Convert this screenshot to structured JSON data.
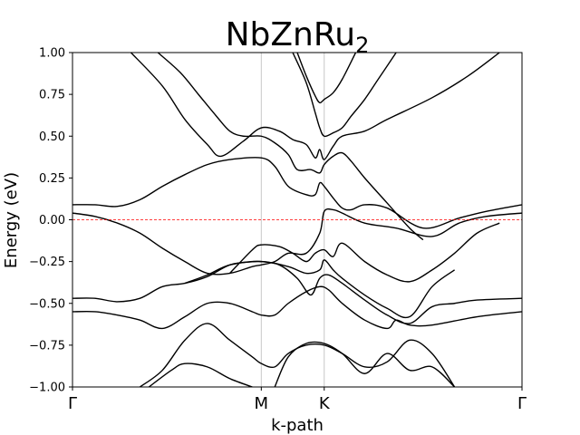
{
  "chart_data": {
    "type": "line",
    "title": "NbZnRu",
    "title_subscript": "2",
    "xlabel": "k-path",
    "ylabel": "Energy (eV)",
    "ylim": [
      -1.0,
      1.0
    ],
    "xlim": [
      0,
      1
    ],
    "yticks": [
      {
        "value": 1.0,
        "label": "1.00"
      },
      {
        "value": 0.75,
        "label": "0.75"
      },
      {
        "value": 0.5,
        "label": "0.50"
      },
      {
        "value": 0.25,
        "label": "0.25"
      },
      {
        "value": 0.0,
        "label": "0.00"
      },
      {
        "value": -0.25,
        "label": "−0.25"
      },
      {
        "value": -0.5,
        "label": "−0.50"
      },
      {
        "value": -0.75,
        "label": "−0.75"
      },
      {
        "value": -1.0,
        "label": "−1.00"
      }
    ],
    "kpoints": [
      {
        "label": "Γ",
        "x": 0.0
      },
      {
        "label": "M",
        "x": 0.42
      },
      {
        "label": "K",
        "x": 0.56
      },
      {
        "label": "Γ",
        "x": 1.0
      }
    ],
    "fermi_level": 0.0,
    "colors": {
      "bands": "#000000",
      "fermi": "#ff0000",
      "kline": "#c8c8c8"
    },
    "bands": [
      {
        "points": [
          [
            0.13,
            1.0
          ],
          [
            0.2,
            0.8
          ],
          [
            0.25,
            0.6
          ],
          [
            0.3,
            0.45
          ],
          [
            0.33,
            0.38
          ],
          [
            0.38,
            0.47
          ],
          [
            0.42,
            0.55
          ],
          [
            0.46,
            0.53
          ],
          [
            0.49,
            0.48
          ],
          [
            0.52,
            0.45
          ],
          [
            0.54,
            0.37
          ],
          [
            0.55,
            0.42
          ],
          [
            0.56,
            0.36
          ],
          [
            0.58,
            0.44
          ],
          [
            0.6,
            0.5
          ],
          [
            0.65,
            0.53
          ],
          [
            0.7,
            0.6
          ],
          [
            0.8,
            0.73
          ],
          [
            0.88,
            0.86
          ],
          [
            0.95,
            1.0
          ]
        ]
      },
      {
        "points": [
          [
            0.19,
            1.0
          ],
          [
            0.24,
            0.88
          ],
          [
            0.28,
            0.75
          ],
          [
            0.32,
            0.62
          ],
          [
            0.35,
            0.53
          ],
          [
            0.38,
            0.5
          ],
          [
            0.42,
            0.5
          ],
          [
            0.45,
            0.46
          ],
          [
            0.48,
            0.39
          ],
          [
            0.5,
            0.3
          ],
          [
            0.53,
            0.3
          ],
          [
            0.55,
            0.28
          ],
          [
            0.56,
            0.33
          ],
          [
            0.58,
            0.38
          ],
          [
            0.6,
            0.4
          ],
          [
            0.62,
            0.35
          ],
          [
            0.65,
            0.25
          ],
          [
            0.7,
            0.1
          ],
          [
            0.75,
            -0.05
          ],
          [
            0.78,
            -0.12
          ]
        ]
      },
      {
        "points": [
          [
            0.49,
            1.0
          ],
          [
            0.52,
            0.82
          ],
          [
            0.54,
            0.64
          ],
          [
            0.55,
            0.55
          ],
          [
            0.56,
            0.5
          ],
          [
            0.58,
            0.52
          ],
          [
            0.6,
            0.55
          ],
          [
            0.62,
            0.62
          ],
          [
            0.65,
            0.72
          ],
          [
            0.68,
            0.84
          ],
          [
            0.72,
            1.0
          ]
        ]
      },
      {
        "points": [
          [
            0.5,
            1.0
          ],
          [
            0.52,
            0.86
          ],
          [
            0.54,
            0.74
          ],
          [
            0.55,
            0.7
          ],
          [
            0.56,
            0.72
          ],
          [
            0.58,
            0.76
          ],
          [
            0.6,
            0.84
          ],
          [
            0.63,
            1.0
          ]
        ]
      },
      {
        "points": [
          [
            0.0,
            0.09
          ],
          [
            0.05,
            0.09
          ],
          [
            0.1,
            0.08
          ],
          [
            0.15,
            0.12
          ],
          [
            0.2,
            0.2
          ],
          [
            0.25,
            0.27
          ],
          [
            0.3,
            0.33
          ],
          [
            0.35,
            0.36
          ],
          [
            0.42,
            0.37
          ],
          [
            0.45,
            0.32
          ],
          [
            0.48,
            0.2
          ],
          [
            0.52,
            0.15
          ],
          [
            0.54,
            0.15
          ],
          [
            0.55,
            0.22
          ],
          [
            0.56,
            0.2
          ],
          [
            0.58,
            0.13
          ],
          [
            0.6,
            0.07
          ],
          [
            0.62,
            0.06
          ],
          [
            0.65,
            0.09
          ],
          [
            0.7,
            0.07
          ],
          [
            0.78,
            -0.05
          ],
          [
            0.86,
            0.01
          ],
          [
            0.92,
            0.05
          ],
          [
            1.0,
            0.09
          ]
        ]
      },
      {
        "points": [
          [
            0.0,
            0.04
          ],
          [
            0.05,
            0.02
          ],
          [
            0.1,
            -0.02
          ],
          [
            0.15,
            -0.08
          ],
          [
            0.2,
            -0.17
          ],
          [
            0.25,
            -0.25
          ],
          [
            0.3,
            -0.32
          ],
          [
            0.35,
            -0.32
          ],
          [
            0.4,
            -0.28
          ],
          [
            0.42,
            -0.27
          ],
          [
            0.45,
            -0.25
          ],
          [
            0.48,
            -0.2
          ],
          [
            0.52,
            -0.2
          ],
          [
            0.55,
            -0.08
          ],
          [
            0.56,
            0.05
          ],
          [
            0.58,
            0.06
          ],
          [
            0.6,
            0.04
          ],
          [
            0.65,
            -0.02
          ],
          [
            0.72,
            -0.05
          ],
          [
            0.8,
            -0.1
          ],
          [
            0.86,
            -0.02
          ],
          [
            0.92,
            0.02
          ],
          [
            1.0,
            0.04
          ]
        ]
      },
      {
        "points": [
          [
            0.35,
            -0.32
          ],
          [
            0.4,
            -0.18
          ],
          [
            0.42,
            -0.15
          ],
          [
            0.46,
            -0.16
          ],
          [
            0.49,
            -0.2
          ],
          [
            0.52,
            -0.25
          ],
          [
            0.54,
            -0.2
          ],
          [
            0.56,
            -0.18
          ],
          [
            0.58,
            -0.22
          ],
          [
            0.6,
            -0.14
          ],
          [
            0.65,
            -0.25
          ],
          [
            0.7,
            -0.33
          ],
          [
            0.75,
            -0.37
          ],
          [
            0.8,
            -0.3
          ],
          [
            0.85,
            -0.2
          ],
          [
            0.9,
            -0.08
          ],
          [
            0.95,
            -0.02
          ]
        ]
      },
      {
        "points": [
          [
            0.25,
            -0.38
          ],
          [
            0.3,
            -0.33
          ],
          [
            0.35,
            -0.27
          ],
          [
            0.42,
            -0.25
          ],
          [
            0.48,
            -0.28
          ],
          [
            0.52,
            -0.32
          ],
          [
            0.55,
            -0.3
          ],
          [
            0.56,
            -0.24
          ],
          [
            0.58,
            -0.3
          ],
          [
            0.6,
            -0.35
          ],
          [
            0.65,
            -0.45
          ],
          [
            0.7,
            -0.53
          ],
          [
            0.75,
            -0.58
          ],
          [
            0.8,
            -0.4
          ],
          [
            0.85,
            -0.3
          ]
        ]
      },
      {
        "points": [
          [
            0.0,
            -0.47
          ],
          [
            0.05,
            -0.47
          ],
          [
            0.1,
            -0.49
          ],
          [
            0.15,
            -0.47
          ],
          [
            0.2,
            -0.4
          ],
          [
            0.25,
            -0.38
          ],
          [
            0.3,
            -0.34
          ],
          [
            0.35,
            -0.27
          ],
          [
            0.4,
            -0.25
          ],
          [
            0.42,
            -0.25
          ],
          [
            0.46,
            -0.27
          ],
          [
            0.5,
            -0.35
          ],
          [
            0.53,
            -0.45
          ],
          [
            0.55,
            -0.35
          ],
          [
            0.57,
            -0.33
          ],
          [
            0.6,
            -0.38
          ],
          [
            0.65,
            -0.48
          ],
          [
            0.7,
            -0.57
          ],
          [
            0.75,
            -0.62
          ],
          [
            0.8,
            -0.52
          ],
          [
            0.85,
            -0.5
          ],
          [
            0.9,
            -0.48
          ],
          [
            1.0,
            -0.47
          ]
        ]
      },
      {
        "points": [
          [
            0.0,
            -0.55
          ],
          [
            0.05,
            -0.55
          ],
          [
            0.1,
            -0.57
          ],
          [
            0.15,
            -0.6
          ],
          [
            0.2,
            -0.65
          ],
          [
            0.25,
            -0.58
          ],
          [
            0.3,
            -0.5
          ],
          [
            0.35,
            -0.5
          ],
          [
            0.4,
            -0.55
          ],
          [
            0.42,
            -0.57
          ],
          [
            0.45,
            -0.57
          ],
          [
            0.48,
            -0.5
          ],
          [
            0.52,
            -0.43
          ],
          [
            0.55,
            -0.4
          ],
          [
            0.57,
            -0.42
          ],
          [
            0.6,
            -0.5
          ],
          [
            0.65,
            -0.6
          ],
          [
            0.7,
            -0.65
          ],
          [
            0.72,
            -0.6
          ],
          [
            0.75,
            -0.63
          ],
          [
            0.8,
            -0.63
          ],
          [
            0.9,
            -0.58
          ],
          [
            1.0,
            -0.55
          ]
        ]
      },
      {
        "points": [
          [
            0.15,
            -1.0
          ],
          [
            0.2,
            -0.9
          ],
          [
            0.25,
            -0.72
          ],
          [
            0.3,
            -0.62
          ],
          [
            0.35,
            -0.72
          ],
          [
            0.4,
            -0.82
          ],
          [
            0.42,
            -0.86
          ],
          [
            0.45,
            -0.88
          ],
          [
            0.48,
            -0.8
          ],
          [
            0.52,
            -0.75
          ],
          [
            0.56,
            -0.75
          ],
          [
            0.6,
            -0.8
          ],
          [
            0.65,
            -0.88
          ],
          [
            0.7,
            -0.85
          ],
          [
            0.75,
            -0.72
          ],
          [
            0.8,
            -0.8
          ],
          [
            0.85,
            -1.0
          ]
        ]
      },
      {
        "points": [
          [
            0.17,
            -1.0
          ],
          [
            0.22,
            -0.9
          ],
          [
            0.25,
            -0.86
          ],
          [
            0.3,
            -0.88
          ],
          [
            0.35,
            -0.95
          ],
          [
            0.4,
            -1.0
          ]
        ]
      },
      {
        "points": [
          [
            0.45,
            -1.0
          ],
          [
            0.48,
            -0.82
          ],
          [
            0.52,
            -0.74
          ],
          [
            0.56,
            -0.74
          ],
          [
            0.6,
            -0.8
          ],
          [
            0.65,
            -0.92
          ],
          [
            0.7,
            -0.8
          ],
          [
            0.75,
            -0.9
          ],
          [
            0.8,
            -0.88
          ],
          [
            0.85,
            -1.0
          ]
        ]
      }
    ]
  }
}
